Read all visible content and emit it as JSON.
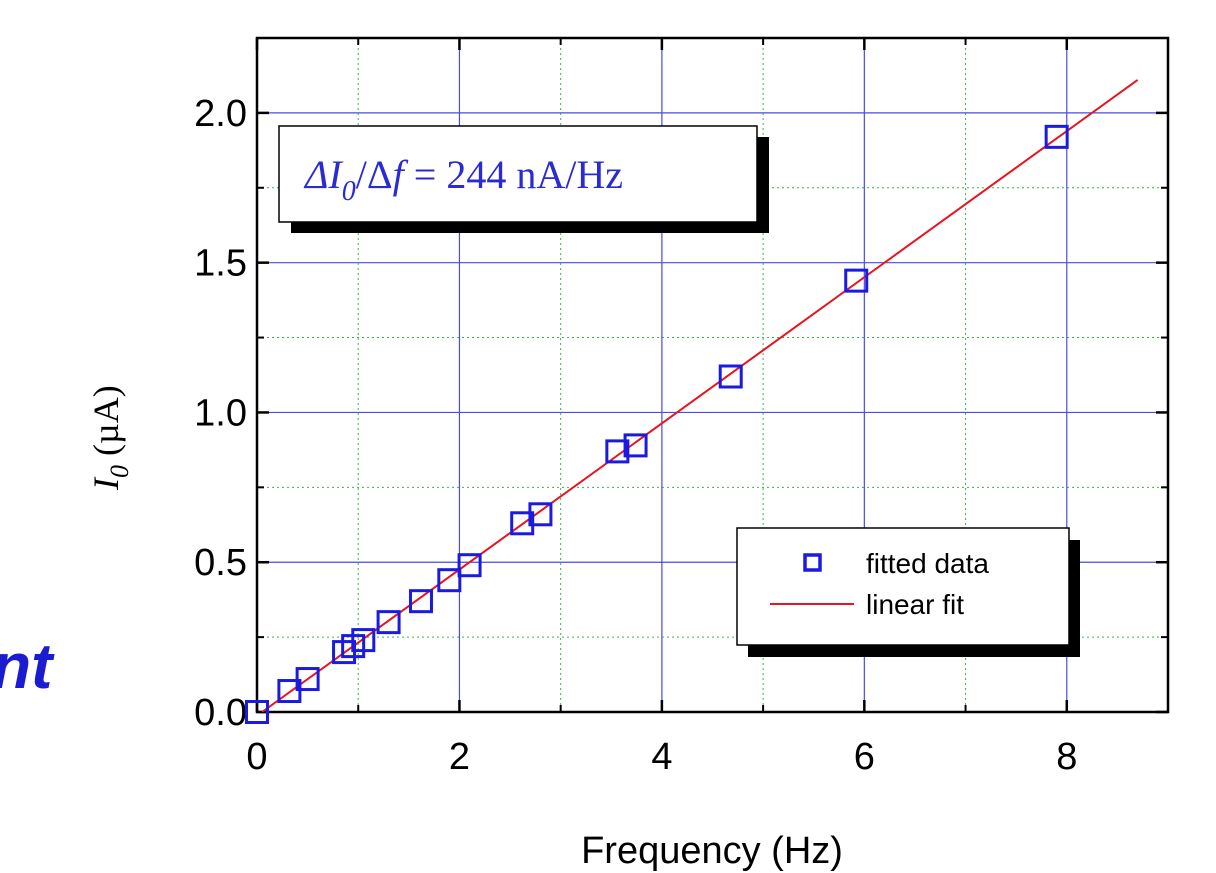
{
  "chart_data": {
    "type": "scatter",
    "xlabel": "Frequency  (Hz)",
    "ylabel": {
      "symbol": "I",
      "subscript": "0",
      "unit": " (µA)"
    },
    "xlim": [
      0,
      9
    ],
    "ylim": [
      0,
      2.25
    ],
    "x_ticks": [
      0,
      2,
      4,
      6,
      8
    ],
    "x_tick_labels": [
      "0",
      "2",
      "4",
      "6",
      "8"
    ],
    "y_ticks": [
      0,
      0.5,
      1.0,
      1.5,
      2.0
    ],
    "y_tick_labels": [
      "0.0",
      "0.5",
      "1.0",
      "1.5",
      "2.0"
    ],
    "grid": true,
    "series": [
      {
        "name": "fitted data",
        "marker": "open-square",
        "color": "#1a1ae0",
        "x": [
          0.0,
          0.32,
          0.5,
          0.86,
          0.95,
          1.05,
          1.3,
          1.62,
          1.9,
          2.1,
          2.62,
          2.8,
          3.56,
          3.74,
          4.68,
          5.92,
          7.9
        ],
        "y": [
          0.0,
          0.07,
          0.11,
          0.2,
          0.22,
          0.24,
          0.3,
          0.37,
          0.44,
          0.49,
          0.63,
          0.66,
          0.87,
          0.89,
          1.12,
          1.44,
          1.92
        ]
      },
      {
        "name": "linear fit",
        "line": true,
        "color": "#e8141e",
        "x": [
          0.05,
          8.7
        ],
        "y": [
          0.0,
          2.11
        ]
      }
    ],
    "annotation": {
      "delta_i": "ΔI",
      "sub": "0",
      "slash_df": "/Δ",
      "f": "f",
      "rest": " = 244 nA/Hz"
    },
    "legend_position": "lower-right"
  },
  "cutoff_text": "nt"
}
